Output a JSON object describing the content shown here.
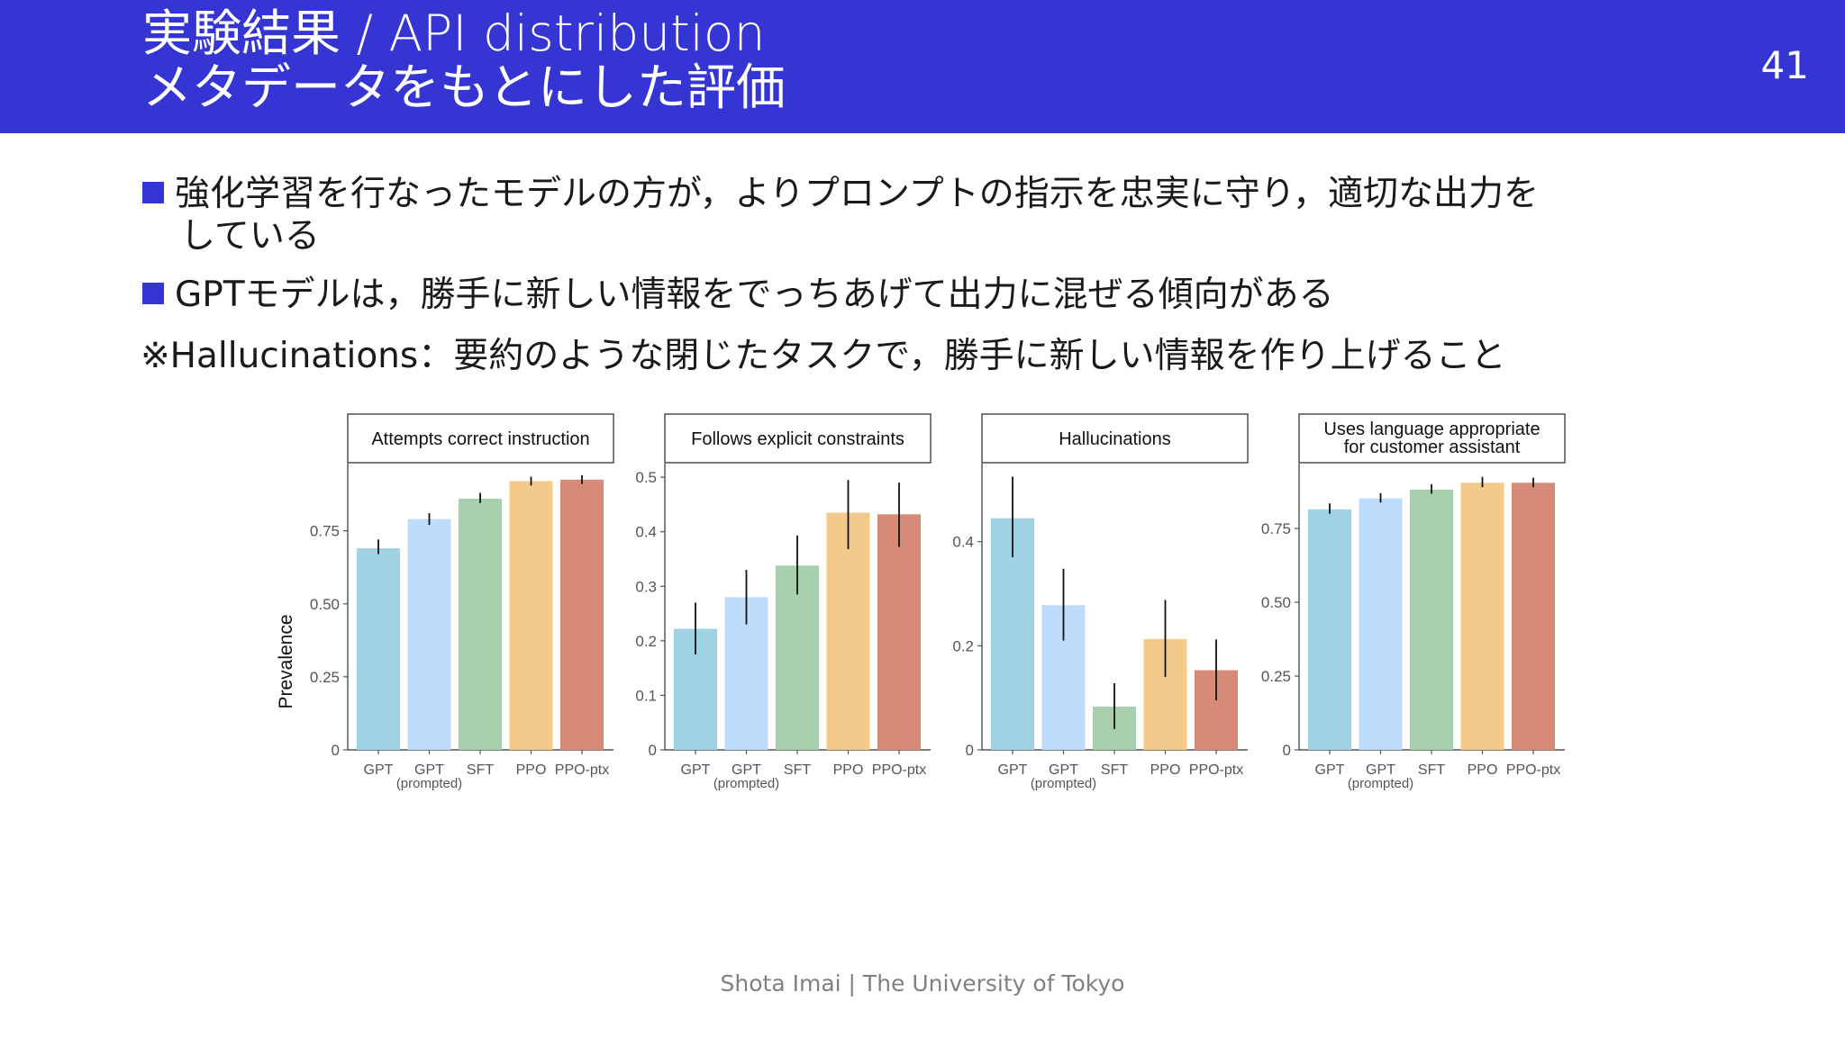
{
  "slide": {
    "title_line1": "実験結果 / API distribution",
    "title_line2": "メタデータをもとにした評価",
    "page_number": "41",
    "header_color": "#3535d3",
    "bullets": [
      {
        "line1": "強化学習を行なったモデルの方が，よりプロンプトの指示を忠実に守り，適切な出力を",
        "line2": "している"
      },
      {
        "line1": "GPTモデルは，勝手に新しい情報をでっちあげて出力に混ぜる傾向がある"
      }
    ],
    "note": "※Hallucinations：要約のような閉じたタスクで，勝手に新しい情報を作り上げること",
    "footer": "Shota Imai | The University of Tokyo"
  },
  "chart_data": {
    "type": "bar",
    "ylabel": "Prevalence",
    "categories": [
      {
        "line1": "GPT",
        "line2": ""
      },
      {
        "line1": "GPT",
        "line2": "(prompted)"
      },
      {
        "line1": "SFT",
        "line2": ""
      },
      {
        "line1": "PPO",
        "line2": ""
      },
      {
        "line1": "PPO-ptx",
        "line2": ""
      }
    ],
    "colors": [
      "#9fd3e3",
      "#bddcfb",
      "#a7cfae",
      "#f3c98c",
      "#d88a78"
    ],
    "panels": [
      {
        "title": [
          "Attempts correct instruction"
        ],
        "ylim": [
          0,
          0.98
        ],
        "yticks": [
          {
            "v": 0,
            "label": "0"
          },
          {
            "v": 0.25,
            "label": "0.25"
          },
          {
            "v": 0.5,
            "label": "0.50"
          },
          {
            "v": 0.75,
            "label": "0.75"
          }
        ],
        "values": [
          0.69,
          0.79,
          0.86,
          0.92,
          0.925
        ],
        "err_low": [
          0.67,
          0.77,
          0.845,
          0.905,
          0.91
        ],
        "err_high": [
          0.72,
          0.81,
          0.88,
          0.935,
          0.94
        ]
      },
      {
        "title": [
          "Follows explicit constraints"
        ],
        "ylim": [
          0,
          0.525
        ],
        "yticks": [
          {
            "v": 0,
            "label": "0"
          },
          {
            "v": 0.1,
            "label": "0.1"
          },
          {
            "v": 0.2,
            "label": "0.2"
          },
          {
            "v": 0.3,
            "label": "0.3"
          },
          {
            "v": 0.4,
            "label": "0.4"
          },
          {
            "v": 0.5,
            "label": "0.5"
          }
        ],
        "values": [
          0.222,
          0.28,
          0.338,
          0.435,
          0.432
        ],
        "err_low": [
          0.175,
          0.23,
          0.285,
          0.368,
          0.372
        ],
        "err_high": [
          0.27,
          0.33,
          0.393,
          0.495,
          0.49
        ]
      },
      {
        "title": [
          "Hallucinations"
        ],
        "ylim": [
          0,
          0.55
        ],
        "yticks": [
          {
            "v": 0,
            "label": "0"
          },
          {
            "v": 0.2,
            "label": "0.2"
          },
          {
            "v": 0.4,
            "label": "0.4"
          }
        ],
        "values": [
          0.445,
          0.278,
          0.083,
          0.213,
          0.153
        ],
        "err_low": [
          0.37,
          0.21,
          0.04,
          0.14,
          0.095
        ],
        "err_high": [
          0.525,
          0.348,
          0.128,
          0.288,
          0.212
        ]
      },
      {
        "title": [
          "Uses language appropriate",
          "for customer assistant"
        ],
        "ylim": [
          0,
          0.97
        ],
        "yticks": [
          {
            "v": 0,
            "label": "0"
          },
          {
            "v": 0.25,
            "label": "0.25"
          },
          {
            "v": 0.5,
            "label": "0.50"
          },
          {
            "v": 0.75,
            "label": "0.75"
          }
        ],
        "values": [
          0.815,
          0.852,
          0.882,
          0.905,
          0.905
        ],
        "err_low": [
          0.8,
          0.838,
          0.868,
          0.89,
          0.89
        ],
        "err_high": [
          0.835,
          0.87,
          0.9,
          0.925,
          0.922
        ]
      }
    ]
  }
}
